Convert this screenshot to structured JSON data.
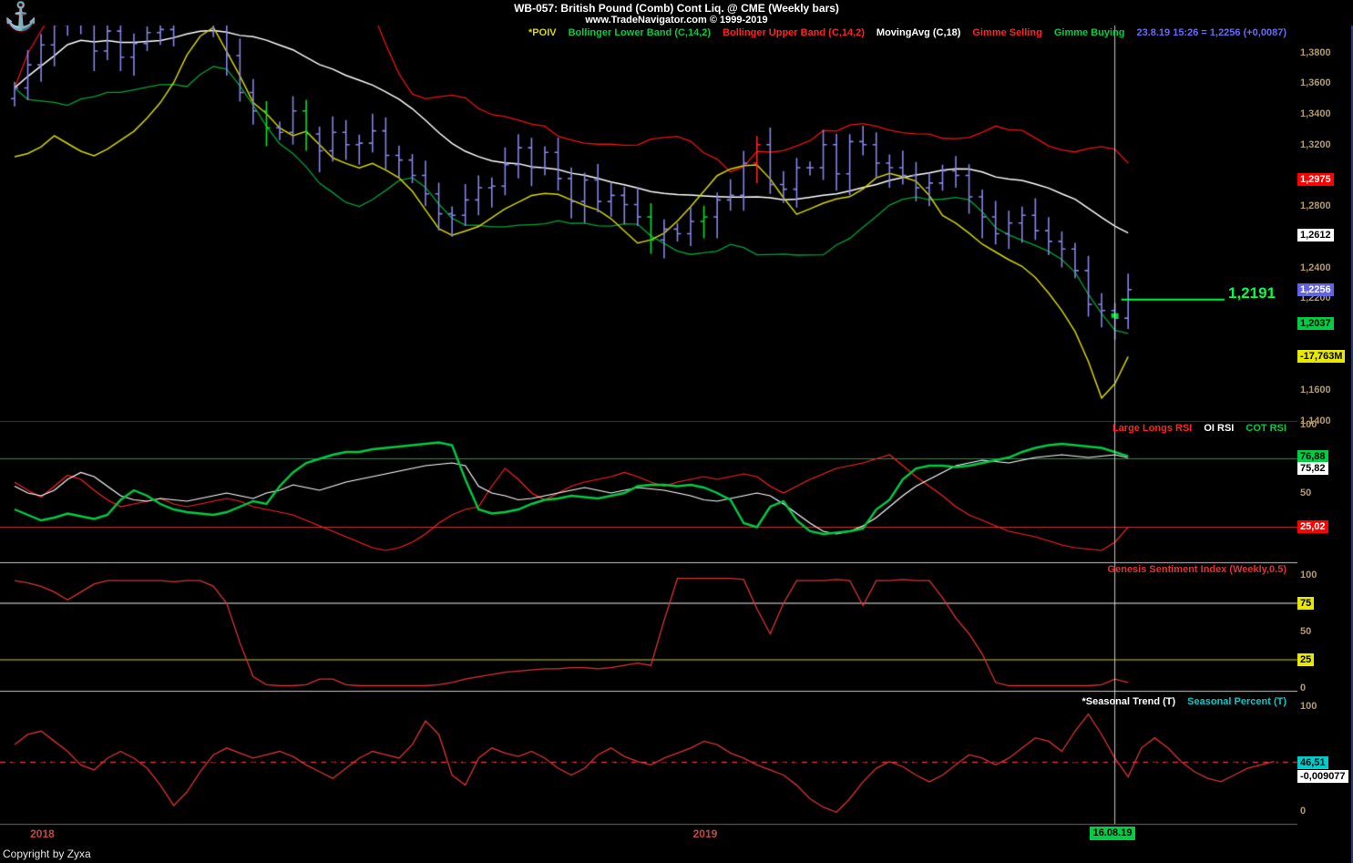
{
  "app": {
    "title": "WB-057:  British Pound (Comb) Cont Liq. @ CME  (Weekly bars)",
    "subtitle": "www.TradeNavigator.com © 1999-2019",
    "copyright": "Copyright by Zyxa",
    "logo_icon": "anchor-icon"
  },
  "colors": {
    "background": "#000000",
    "bar": "#8585ea",
    "moving_avg": "#ffffff",
    "bb_upper": "#ee1111",
    "bb_lower": "#00a535",
    "poiv": "#d6d600",
    "gimme_buy": "#00dd33",
    "gimme_sell": "#ff2222",
    "gimme_level": "#00ff44",
    "quote": "#6a6af5",
    "axis_text": "#b39b6e",
    "date_text": "#c04848",
    "crosshair": "#cfcfcf",
    "badge_styles": {
      "red": [
        "#ff0000",
        "#ffffff"
      ],
      "white": [
        "#ffffff",
        "#000000"
      ],
      "blue": [
        "#6363e8",
        "#ffffff"
      ],
      "green": [
        "#00cc44",
        "#000000"
      ],
      "yellow": [
        "#e8e800",
        "#000000"
      ],
      "cyan": [
        "#00cccc",
        "#000000"
      ]
    }
  },
  "legends": {
    "price": [
      {
        "name": "legend-poiv",
        "label": "*POIV",
        "color": "#d6d600"
      },
      {
        "name": "legend-bollinger-lower",
        "label": "Bollinger Lower Band (C,14,2)",
        "color": "#00cc44"
      },
      {
        "name": "legend-bollinger-upper",
        "label": "Bollinger Upper Band (C,14,2)",
        "color": "#ff2222"
      },
      {
        "name": "legend-moving-avg",
        "label": "MovingAvg (C,18)",
        "color": "#ffffff"
      },
      {
        "name": "legend-gimme-selling",
        "label": "Gimme Selling",
        "color": "#ff2222"
      },
      {
        "name": "legend-gimme-buying",
        "label": "Gimme Buying",
        "color": "#00cc44"
      },
      {
        "name": "quote-readout",
        "label": "23.8.19 15:26 = 1,2256 (+0,0087)",
        "color": "#6a6af5"
      }
    ],
    "rsi": [
      {
        "name": "legend-large-longs-rsi",
        "label": "Large Longs RSI",
        "color": "#ff2222"
      },
      {
        "name": "legend-oi-rsi",
        "label": "OI RSI",
        "color": "#ffffff"
      },
      {
        "name": "legend-cot-rsi",
        "label": "COT RSI",
        "color": "#00cc44"
      }
    ],
    "sentiment": [
      {
        "name": "legend-sentiment-title",
        "label": "Genesis Sentiment Index (Weekly,0.5)",
        "color": "#dd3333"
      }
    ],
    "seasonal": [
      {
        "name": "legend-seasonal-trend",
        "label": "*Seasonal Trend (T)",
        "color": "#ffffff"
      },
      {
        "name": "legend-seasonal-percent",
        "label": "Seasonal Percent (T)",
        "color": "#00cccc"
      }
    ]
  },
  "price_panel": {
    "gimme_level_label": "1,2191"
  },
  "axis_plain": [
    {
      "panel": "price",
      "text": "1,3800",
      "value": 1.38
    },
    {
      "panel": "price",
      "text": "1,3600",
      "value": 1.36
    },
    {
      "panel": "price",
      "text": "1,3400",
      "value": 1.34
    },
    {
      "panel": "price",
      "text": "1,3200",
      "value": 1.32
    },
    {
      "panel": "price",
      "text": "1,2800",
      "value": 1.28
    },
    {
      "panel": "price",
      "text": "1,2400",
      "value": 1.24
    },
    {
      "panel": "price",
      "text": "1,2200",
      "value": 1.22
    },
    {
      "panel": "price",
      "text": "1,1600",
      "value": 1.16
    },
    {
      "panel": "price",
      "text": "1,1400",
      "value": 1.14
    },
    {
      "panel": "rsi",
      "text": "100",
      "value": 100
    },
    {
      "panel": "rsi",
      "text": "50",
      "value": 50
    },
    {
      "panel": "rsi",
      "text": "25",
      "value": 25
    },
    {
      "panel": "sent",
      "text": "100",
      "value": 100
    },
    {
      "panel": "sent",
      "text": "50",
      "value": 50
    },
    {
      "panel": "sent",
      "text": "0",
      "value": 0
    },
    {
      "panel": "seas",
      "text": "100",
      "value": 100
    },
    {
      "panel": "seas",
      "text": "0",
      "value": 0
    }
  ],
  "axis_badges": [
    {
      "panel": "price",
      "text": "1,2975",
      "value": 1.2975,
      "style": "red"
    },
    {
      "panel": "price",
      "text": "1,2612",
      "value": 1.2612,
      "style": "white"
    },
    {
      "panel": "price",
      "text": "1,2256",
      "value": 1.2256,
      "style": "blue"
    },
    {
      "panel": "price",
      "text": "1,2037",
      "value": 1.2037,
      "style": "green"
    },
    {
      "panel": "price",
      "text": "-17,763M",
      "poiv": true,
      "style": "yellow"
    },
    {
      "panel": "rsi",
      "text": "76,88",
      "value": 76.88,
      "style": "green"
    },
    {
      "panel": "rsi",
      "text": "75,82",
      "value": 75.82,
      "style": "white"
    },
    {
      "panel": "rsi",
      "text": "25,02",
      "value": 25.02,
      "style": "red"
    },
    {
      "panel": "sent",
      "text": "75",
      "value": 75,
      "style": "yellow"
    },
    {
      "panel": "sent",
      "text": "25",
      "value": 25,
      "style": "yellow"
    },
    {
      "panel": "seas",
      "text": "-0,009077",
      "trend": -0.009077,
      "style": "white"
    },
    {
      "panel": "seas",
      "text": "46,51",
      "value": 46.51,
      "style": "cyan"
    }
  ],
  "date_axis": {
    "labels": [
      {
        "text": "2018",
        "week": 2
      },
      {
        "text": "2019",
        "week": 52
      }
    ],
    "crosshair": {
      "text": "16.08.19",
      "week": 83
    }
  },
  "chart_data": [
    {
      "type": "ohlc-bar",
      "name": "price",
      "instrument": "British Pound (Comb) Cont Liq. @ CME",
      "interval": "Weekly",
      "ylim": [
        1.14,
        1.4
      ],
      "first_open": 1.35,
      "high_offset": 0.008,
      "low_offset": 0.01,
      "closes": [
        1.357,
        1.372,
        1.385,
        1.398,
        1.414,
        1.402,
        1.381,
        1.394,
        1.377,
        1.386,
        1.393,
        1.395,
        1.412,
        1.424,
        1.419,
        1.4,
        1.378,
        1.354,
        1.342,
        1.331,
        1.328,
        1.342,
        1.327,
        1.316,
        1.328,
        1.32,
        1.321,
        1.329,
        1.313,
        1.31,
        1.3,
        1.288,
        1.275,
        1.274,
        1.284,
        1.292,
        1.293,
        1.307,
        1.318,
        1.305,
        1.315,
        1.298,
        1.283,
        1.297,
        1.283,
        1.287,
        1.281,
        1.273,
        1.258,
        1.265,
        1.262,
        1.27,
        1.273,
        1.284,
        1.287,
        1.308,
        1.32,
        1.294,
        1.291,
        1.305,
        1.305,
        1.32,
        1.301,
        1.322,
        1.32,
        1.308,
        1.305,
        1.3,
        1.292,
        1.295,
        1.303,
        1.3,
        1.286,
        1.273,
        1.262,
        1.269,
        1.274,
        1.264,
        1.257,
        1.252,
        1.238,
        1.216,
        1.212,
        1.207,
        1.2256
      ],
      "gimme_buying_weeks": [
        19,
        22,
        48,
        52
      ],
      "gimme_selling_weeks": [
        56
      ],
      "buy_marker": {
        "week": 83,
        "price": 1.209
      },
      "overlays": {
        "moving_avg_period": 18,
        "bollinger_period": 14,
        "bollinger_stddev": 2,
        "gimme_level": 1.2191,
        "last_price": 1.2256,
        "change": 0.0087,
        "poiv_ylim": [
          -23000,
          12000
        ],
        "poiv_last": -17763,
        "poiv_millions": [
          300,
          600,
          1200,
          2200,
          1500,
          800,
          400,
          1000,
          1800,
          2600,
          3800,
          5200,
          7000,
          9500,
          11200,
          12000,
          9800,
          7600,
          5200,
          4200,
          2900,
          2200,
          2600,
          1400,
          200,
          -300,
          -700,
          -300,
          -900,
          -1600,
          -2800,
          -4500,
          -6200,
          -6800,
          -6400,
          -6000,
          -5200,
          -4400,
          -3800,
          -3200,
          -3000,
          -3100,
          -3600,
          -4100,
          -4500,
          -5300,
          -6400,
          -7500,
          -7200,
          -6600,
          -5500,
          -4200,
          -2800,
          -1400,
          -800,
          -500,
          -430,
          -1700,
          -3400,
          -4900,
          -4400,
          -3900,
          -3500,
          -3300,
          -2600,
          -1600,
          -1200,
          -1500,
          -1900,
          -3200,
          -5000,
          -5700,
          -6600,
          -7600,
          -8300,
          -9000,
          -9600,
          -10600,
          -12000,
          -13600,
          -15500,
          -18200,
          -21500,
          -20200,
          -17763
        ]
      }
    },
    {
      "type": "line",
      "name": "rsi",
      "ylim": [
        0,
        100
      ],
      "hlines": [
        {
          "value": 75,
          "color": "#00aa44"
        },
        {
          "value": 25,
          "color": "#cc3333"
        }
      ],
      "series": [
        {
          "name": "Large Longs RSI",
          "color": "#ff2222",
          "width": 1.2,
          "last": 25.02,
          "values": [
            58,
            52,
            47,
            55,
            63,
            60,
            52,
            45,
            40,
            42,
            44,
            46,
            42,
            40,
            42,
            44,
            46,
            44,
            40,
            38,
            36,
            34,
            30,
            26,
            22,
            18,
            14,
            10,
            8,
            10,
            14,
            20,
            28,
            34,
            38,
            40,
            55,
            68,
            60,
            50,
            45,
            50,
            55,
            58,
            60,
            62,
            65,
            62,
            58,
            55,
            58,
            60,
            62,
            60,
            62,
            64,
            62,
            55,
            50,
            55,
            60,
            64,
            68,
            70,
            72,
            75,
            78,
            70,
            62,
            55,
            48,
            40,
            34,
            30,
            26,
            22,
            20,
            18,
            15,
            12,
            10,
            9,
            8,
            14,
            25.02
          ]
        },
        {
          "name": "OI RSI",
          "color": "#ffffff",
          "width": 1.2,
          "last": 75.82,
          "values": [
            55,
            50,
            48,
            52,
            60,
            65,
            62,
            55,
            48,
            45,
            44,
            46,
            45,
            44,
            46,
            48,
            50,
            48,
            46,
            50,
            52,
            56,
            54,
            52,
            55,
            58,
            60,
            62,
            64,
            66,
            68,
            70,
            71,
            72,
            70,
            55,
            50,
            48,
            45,
            46,
            48,
            50,
            52,
            54,
            52,
            50,
            52,
            54,
            53,
            52,
            50,
            48,
            45,
            44,
            46,
            48,
            50,
            48,
            42,
            35,
            28,
            22,
            20,
            22,
            26,
            32,
            40,
            48,
            55,
            60,
            65,
            70,
            72,
            74,
            73,
            72,
            74,
            76,
            77,
            78,
            77,
            76,
            77,
            78,
            75.82
          ]
        },
        {
          "name": "COT RSI",
          "color": "#00cc44",
          "width": 2.4,
          "last": 76.88,
          "values": [
            38,
            34,
            30,
            32,
            35,
            33,
            31,
            34,
            45,
            52,
            48,
            42,
            38,
            36,
            35,
            34,
            36,
            40,
            44,
            42,
            55,
            65,
            72,
            75,
            78,
            80,
            80,
            82,
            83,
            84,
            85,
            86,
            87,
            85,
            60,
            38,
            35,
            36,
            38,
            42,
            45,
            46,
            48,
            47,
            46,
            48,
            50,
            55,
            56,
            56,
            55,
            56,
            54,
            50,
            45,
            28,
            25,
            40,
            44,
            30,
            22,
            20,
            21,
            22,
            24,
            38,
            45,
            60,
            68,
            70,
            70,
            69,
            70,
            72,
            74,
            76,
            80,
            83,
            85,
            86,
            85,
            84,
            83,
            80,
            76.88
          ]
        }
      ]
    },
    {
      "type": "line",
      "name": "sentiment",
      "title": "Genesis Sentiment Index (Weekly,0.5)",
      "ylim": [
        0,
        100
      ],
      "hlines": [
        {
          "value": 75,
          "color": "#f0f0f0"
        },
        {
          "value": 25,
          "color": "#cfcf00"
        }
      ],
      "series": [
        {
          "name": "Genesis Sentiment Index",
          "color": "#dd3333",
          "width": 1.3,
          "values": [
            95,
            93,
            90,
            85,
            78,
            85,
            92,
            95,
            95,
            95,
            95,
            95,
            94,
            95,
            95,
            90,
            75,
            40,
            10,
            3,
            2,
            2,
            3,
            8,
            8,
            3,
            2,
            2,
            2,
            2,
            2,
            2,
            3,
            5,
            8,
            10,
            12,
            14,
            15,
            16,
            17,
            17,
            18,
            18,
            17,
            18,
            20,
            22,
            20,
            60,
            97,
            97,
            97,
            97,
            97,
            96,
            70,
            48,
            75,
            95,
            95,
            95,
            96,
            95,
            73,
            95,
            95,
            96,
            95,
            95,
            80,
            62,
            48,
            30,
            5,
            2,
            2,
            2,
            2,
            2,
            2,
            2,
            3,
            8,
            5
          ]
        }
      ]
    },
    {
      "type": "line-bar",
      "name": "seasonal",
      "percent_baseline": 46.51,
      "percent_last": 46.51,
      "trend_last": -0.009077,
      "trend_ylim": [
        -0.032,
        0.03
      ],
      "percent_ylim": [
        0,
        100
      ],
      "trend_values": [
        0.01,
        0.016,
        0.018,
        0.012,
        0.006,
        -0.002,
        -0.005,
        0.002,
        0.006,
        0.002,
        -0.004,
        -0.014,
        -0.026,
        -0.018,
        -0.006,
        0.004,
        0.008,
        0.005,
        0.002,
        0.004,
        0.006,
        0.003,
        -0.002,
        -0.006,
        -0.01,
        -0.004,
        0.002,
        0.006,
        0.004,
        0.002,
        0.01,
        0.024,
        0.016,
        -0.008,
        -0.014,
        0.002,
        0.008,
        0.005,
        0.003,
        0.006,
        0.002,
        -0.004,
        -0.008,
        -0.004,
        0.004,
        0.008,
        0.003,
        0.0,
        -0.002,
        0.002,
        0.005,
        0.008,
        0.012,
        0.01,
        0.005,
        0.002,
        -0.002,
        -0.005,
        -0.008,
        -0.014,
        -0.022,
        -0.027,
        -0.03,
        -0.022,
        -0.012,
        -0.004,
        0.0,
        -0.003,
        -0.008,
        -0.012,
        -0.008,
        -0.002,
        0.004,
        0.002,
        -0.002,
        0.002,
        0.008,
        0.014,
        0.012,
        0.006,
        0.018,
        0.028,
        0.016,
        0.002,
        -0.009,
        0.008,
        0.014,
        0.008,
        0.0,
        -0.006,
        -0.01,
        -0.012,
        -0.008,
        -0.004,
        -0.002,
        0.0
      ],
      "percent_values": [
        60,
        40,
        52,
        38,
        55,
        42,
        58,
        44,
        40,
        56,
        38,
        60,
        35,
        50,
        42,
        58,
        44,
        52,
        40,
        55,
        60,
        42,
        38,
        56,
        44,
        52,
        58,
        40,
        35,
        55,
        42,
        58,
        62,
        38,
        52,
        44,
        40,
        56,
        52,
        38,
        60,
        44,
        35,
        52,
        58,
        42,
        55,
        38,
        44,
        60,
        52,
        38,
        58,
        42,
        35,
        55,
        44,
        60,
        38,
        52,
        58,
        35,
        42,
        55,
        60,
        38,
        52,
        44,
        58,
        40,
        35,
        55,
        42,
        60,
        38,
        52,
        44,
        58,
        35,
        55,
        65,
        42,
        58,
        38,
        52,
        60,
        35,
        44,
        55,
        42,
        38,
        58,
        44,
        52,
        40,
        47
      ]
    }
  ]
}
